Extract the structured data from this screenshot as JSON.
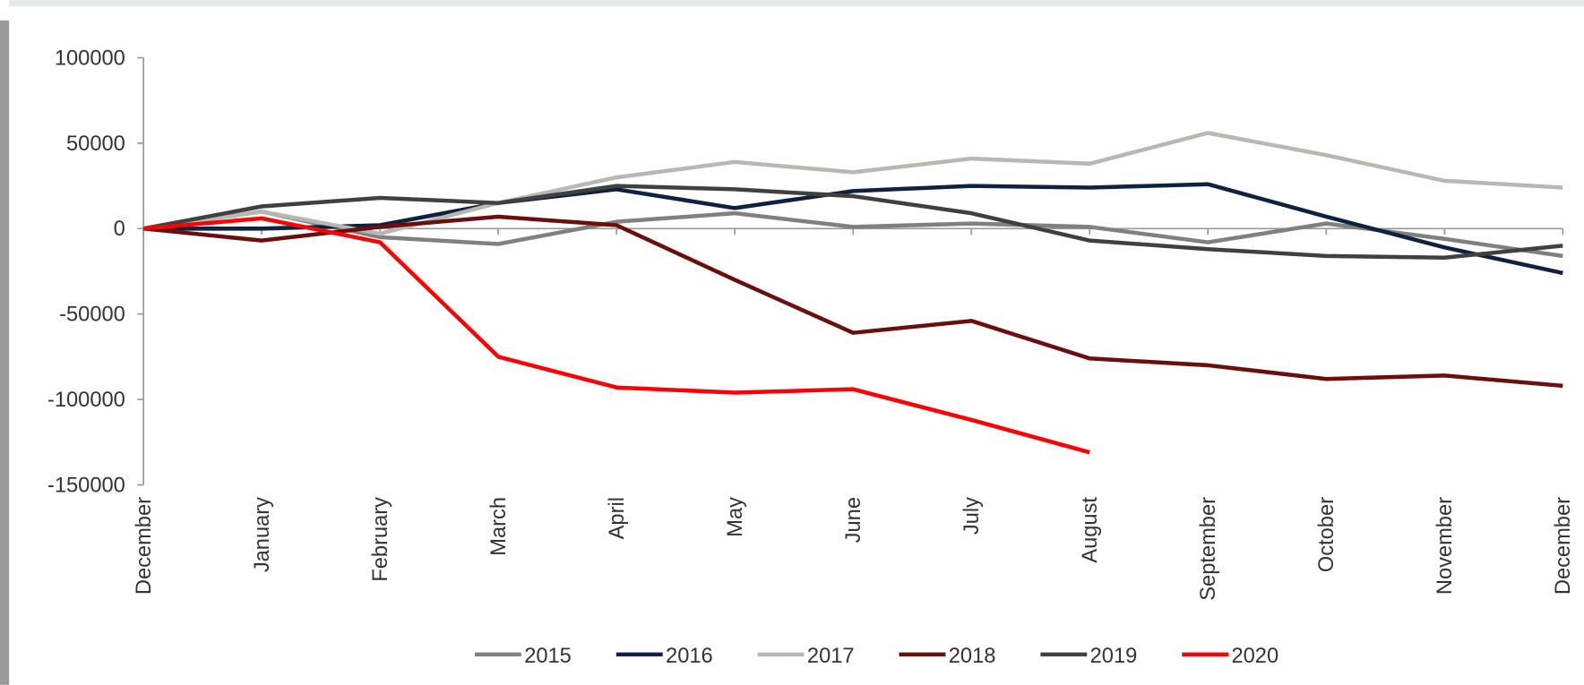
{
  "chart_data": {
    "type": "line",
    "categories": [
      "December",
      "January",
      "February",
      "March",
      "April",
      "May",
      "June",
      "July",
      "August",
      "September",
      "October",
      "November",
      "December"
    ],
    "ylim": [
      -150000,
      100000
    ],
    "yticks": [
      -150000,
      -100000,
      -50000,
      0,
      50000,
      100000
    ],
    "legend": "bottom",
    "series": [
      {
        "name": "2015",
        "color": "#808080",
        "values": [
          0,
          10000,
          -5000,
          -9000,
          4000,
          9000,
          1000,
          3000,
          1000,
          -8000,
          3000,
          -6000,
          -16000
        ]
      },
      {
        "name": "2016",
        "color": "#0d2240",
        "values": [
          0,
          0,
          2000,
          15000,
          23000,
          12000,
          22000,
          25000,
          24000,
          26000,
          7000,
          -11000,
          -26000
        ]
      },
      {
        "name": "2017",
        "color": "#b8b8b2",
        "values": [
          0,
          10000,
          -3000,
          15000,
          30000,
          39000,
          33000,
          41000,
          38000,
          56000,
          43000,
          28000,
          24000
        ]
      },
      {
        "name": "2018",
        "color": "#6b0e0e",
        "values": [
          0,
          -7000,
          1000,
          7000,
          2000,
          -30000,
          -61000,
          -54000,
          -76000,
          -80000,
          -88000,
          -86000,
          -92000
        ]
      },
      {
        "name": "2019",
        "color": "#404040",
        "values": [
          0,
          13000,
          18000,
          15000,
          25000,
          23000,
          19000,
          9000,
          -7000,
          -12000,
          -16000,
          -17000,
          -10000
        ]
      },
      {
        "name": "2020",
        "color": "#ff0000",
        "values": [
          0,
          6000,
          -8000,
          -75000,
          -93000,
          -96000,
          -94000,
          -112000,
          -131000,
          null,
          null,
          null,
          null
        ]
      }
    ]
  }
}
